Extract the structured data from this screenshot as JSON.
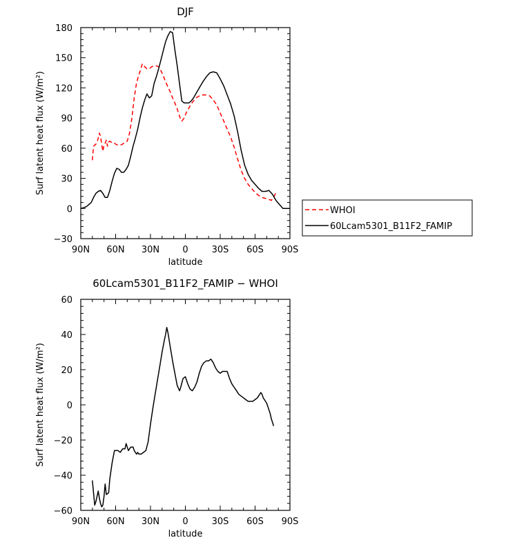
{
  "chart_data": [
    {
      "type": "line",
      "title": "DJF",
      "xlabel": "latitude",
      "ylabel": "Surf latent heat flux (W/m²)",
      "xlim": [
        90,
        -90
      ],
      "ylim": [
        -30,
        180
      ],
      "xticks": [
        90,
        60,
        30,
        0,
        -30,
        -60,
        -90
      ],
      "xtick_labels": [
        "90N",
        "60N",
        "30N",
        "0",
        "30S",
        "60S",
        "90S"
      ],
      "yticks": [
        -30,
        0,
        30,
        60,
        90,
        120,
        150,
        180
      ],
      "ytick_labels": [
        "−30",
        "0",
        "30",
        "60",
        "90",
        "120",
        "150",
        "180"
      ],
      "legend_position": "right",
      "series": [
        {
          "name": "WHOI",
          "color": "#ff0000",
          "dash": "dashed",
          "points": [
            [
              80,
              48
            ],
            [
              79,
              62
            ],
            [
              77,
              64
            ],
            [
              76,
              66
            ],
            [
              75,
              70
            ],
            [
              74,
              75
            ],
            [
              73,
              72
            ],
            [
              72,
              64
            ],
            [
              71,
              57
            ],
            [
              70,
              63
            ],
            [
              69,
              65
            ],
            [
              68,
              68
            ],
            [
              67,
              62
            ],
            [
              66,
              66
            ],
            [
              65,
              67
            ],
            [
              64,
              66
            ],
            [
              62,
              66
            ],
            [
              60,
              64
            ],
            [
              58,
              63
            ],
            [
              56,
              63
            ],
            [
              54,
              64
            ],
            [
              52,
              66
            ],
            [
              50,
              67
            ],
            [
              48,
              75
            ],
            [
              46,
              90
            ],
            [
              44,
              110
            ],
            [
              42,
              125
            ],
            [
              40,
              133
            ],
            [
              38,
              140
            ],
            [
              37,
              144
            ],
            [
              35,
              141
            ],
            [
              33,
              139
            ],
            [
              31,
              139
            ],
            [
              29,
              141
            ],
            [
              27,
              142
            ],
            [
              25,
              142
            ],
            [
              23,
              141
            ],
            [
              21,
              137
            ],
            [
              19,
              132
            ],
            [
              17,
              126
            ],
            [
              15,
              121
            ],
            [
              13,
              116
            ],
            [
              11,
              110
            ],
            [
              9,
              105
            ],
            [
              7,
              99
            ],
            [
              5,
              92
            ],
            [
              4,
              88
            ],
            [
              3,
              87
            ],
            [
              1,
              90
            ],
            [
              -1,
              96
            ],
            [
              -3,
              100
            ],
            [
              -5,
              104
            ],
            [
              -7,
              107
            ],
            [
              -9,
              110
            ],
            [
              -12,
              112
            ],
            [
              -15,
              113
            ],
            [
              -18,
              113
            ],
            [
              -21,
              112
            ],
            [
              -24,
              108
            ],
            [
              -27,
              103
            ],
            [
              -30,
              95
            ],
            [
              -33,
              87
            ],
            [
              -36,
              79
            ],
            [
              -39,
              71
            ],
            [
              -42,
              61
            ],
            [
              -45,
              49
            ],
            [
              -48,
              38
            ],
            [
              -51,
              30
            ],
            [
              -54,
              24
            ],
            [
              -57,
              20
            ],
            [
              -60,
              16
            ],
            [
              -63,
              13
            ],
            [
              -66,
              11
            ],
            [
              -69,
              10
            ],
            [
              -72,
              9
            ],
            [
              -74,
              8
            ],
            [
              -76,
              11
            ],
            [
              -78,
              16
            ]
          ]
        },
        {
          "name": "60Lcam5301_B11F2_FAMIP",
          "color": "#000000",
          "dash": "solid",
          "points": [
            [
              90,
              0
            ],
            [
              87,
              1
            ],
            [
              85,
              2
            ],
            [
              83,
              4
            ],
            [
              81,
              6
            ],
            [
              79,
              11
            ],
            [
              77,
              15
            ],
            [
              75,
              17
            ],
            [
              73,
              18
            ],
            [
              71,
              15
            ],
            [
              69,
              11
            ],
            [
              67,
              11
            ],
            [
              65,
              18
            ],
            [
              63,
              27
            ],
            [
              61,
              35
            ],
            [
              59,
              40
            ],
            [
              57,
              39
            ],
            [
              55,
              36
            ],
            [
              53,
              36
            ],
            [
              51,
              39
            ],
            [
              49,
              43
            ],
            [
              47,
              52
            ],
            [
              45,
              62
            ],
            [
              43,
              70
            ],
            [
              41,
              79
            ],
            [
              39,
              90
            ],
            [
              37,
              100
            ],
            [
              35,
              108
            ],
            [
              33,
              114
            ],
            [
              31,
              110
            ],
            [
              29,
              112
            ],
            [
              27,
              124
            ],
            [
              25,
              131
            ],
            [
              23,
              139
            ],
            [
              21,
              148
            ],
            [
              19,
              157
            ],
            [
              17,
              166
            ],
            [
              15,
              172
            ],
            [
              13,
              176
            ],
            [
              11,
              175
            ],
            [
              9,
              158
            ],
            [
              7,
              142
            ],
            [
              5,
              124
            ],
            [
              3,
              107
            ],
            [
              1,
              105
            ],
            [
              -1,
              105
            ],
            [
              -3,
              105
            ],
            [
              -5,
              107
            ],
            [
              -7,
              110
            ],
            [
              -9,
              114
            ],
            [
              -12,
              120
            ],
            [
              -15,
              126
            ],
            [
              -18,
              131
            ],
            [
              -21,
              135
            ],
            [
              -24,
              136
            ],
            [
              -27,
              135
            ],
            [
              -30,
              129
            ],
            [
              -33,
              122
            ],
            [
              -36,
              113
            ],
            [
              -39,
              104
            ],
            [
              -42,
              92
            ],
            [
              -45,
              76
            ],
            [
              -48,
              58
            ],
            [
              -51,
              43
            ],
            [
              -54,
              34
            ],
            [
              -57,
              28
            ],
            [
              -60,
              24
            ],
            [
              -63,
              20
            ],
            [
              -66,
              17
            ],
            [
              -69,
              17
            ],
            [
              -72,
              18
            ],
            [
              -75,
              14
            ],
            [
              -78,
              8
            ],
            [
              -81,
              4
            ],
            [
              -84,
              0
            ],
            [
              -87,
              0
            ],
            [
              -90,
              0
            ]
          ]
        }
      ]
    },
    {
      "type": "line",
      "title": "60Lcam5301_B11F2_FAMIP − WHOI",
      "xlabel": "latitude",
      "ylabel": "Surf latent heat flux (W/m²)",
      "xlim": [
        90,
        -90
      ],
      "ylim": [
        -60,
        60
      ],
      "xticks": [
        90,
        60,
        30,
        0,
        -30,
        -60,
        -90
      ],
      "xtick_labels": [
        "90N",
        "60N",
        "30N",
        "0",
        "30S",
        "60S",
        "90S"
      ],
      "yticks": [
        -60,
        -40,
        -20,
        0,
        20,
        40,
        60
      ],
      "ytick_labels": [
        "−60",
        "−40",
        "−20",
        "0",
        "20",
        "40",
        "60"
      ],
      "series": [
        {
          "color": "#000000",
          "dash": "solid",
          "points": [
            [
              80,
              -43
            ],
            [
              78,
              -57
            ],
            [
              77,
              -55
            ],
            [
              75,
              -49
            ],
            [
              74,
              -53
            ],
            [
              73,
              -56
            ],
            [
              72,
              -58
            ],
            [
              71,
              -57
            ],
            [
              70,
              -52
            ],
            [
              69,
              -45
            ],
            [
              68,
              -51
            ],
            [
              66,
              -50
            ],
            [
              65,
              -42
            ],
            [
              63,
              -33
            ],
            [
              61,
              -26
            ],
            [
              59,
              -26
            ],
            [
              58,
              -26
            ],
            [
              56,
              -27
            ],
            [
              54,
              -25
            ],
            [
              52,
              -25
            ],
            [
              51,
              -22
            ],
            [
              49,
              -26
            ],
            [
              47,
              -24
            ],
            [
              45,
              -24
            ],
            [
              44,
              -26
            ],
            [
              43,
              -27
            ],
            [
              42,
              -28
            ],
            [
              41,
              -27
            ],
            [
              40,
              -28
            ],
            [
              38,
              -28
            ],
            [
              36,
              -27
            ],
            [
              34,
              -26
            ],
            [
              32,
              -21
            ],
            [
              30,
              -11
            ],
            [
              28,
              -2
            ],
            [
              26,
              6
            ],
            [
              24,
              14
            ],
            [
              22,
              22
            ],
            [
              20,
              30
            ],
            [
              18,
              37
            ],
            [
              17,
              40
            ],
            [
              16,
              44
            ],
            [
              15,
              41
            ],
            [
              13,
              33
            ],
            [
              11,
              25
            ],
            [
              9,
              18
            ],
            [
              7,
              11
            ],
            [
              5,
              8
            ],
            [
              4,
              10
            ],
            [
              2,
              15
            ],
            [
              0,
              16
            ],
            [
              -2,
              12
            ],
            [
              -4,
              9
            ],
            [
              -6,
              8
            ],
            [
              -8,
              10
            ],
            [
              -10,
              13
            ],
            [
              -12,
              18
            ],
            [
              -14,
              22
            ],
            [
              -16,
              24
            ],
            [
              -18,
              25
            ],
            [
              -20,
              25
            ],
            [
              -22,
              26
            ],
            [
              -24,
              24
            ],
            [
              -26,
              21
            ],
            [
              -28,
              19
            ],
            [
              -30,
              18
            ],
            [
              -32,
              19
            ],
            [
              -34,
              19
            ],
            [
              -36,
              19
            ],
            [
              -38,
              15
            ],
            [
              -40,
              12
            ],
            [
              -42,
              10
            ],
            [
              -44,
              8
            ],
            [
              -46,
              6
            ],
            [
              -48,
              5
            ],
            [
              -50,
              4
            ],
            [
              -52,
              3
            ],
            [
              -54,
              2
            ],
            [
              -56,
              2
            ],
            [
              -58,
              2
            ],
            [
              -60,
              3
            ],
            [
              -62,
              4
            ],
            [
              -64,
              6
            ],
            [
              -65,
              7
            ],
            [
              -66,
              6
            ],
            [
              -67,
              4
            ],
            [
              -68,
              3
            ],
            [
              -69,
              2
            ],
            [
              -70,
              1
            ],
            [
              -71,
              -1
            ],
            [
              -72,
              -3
            ],
            [
              -73,
              -5
            ],
            [
              -74,
              -8
            ],
            [
              -75,
              -10
            ],
            [
              -76,
              -12
            ]
          ]
        }
      ]
    }
  ]
}
